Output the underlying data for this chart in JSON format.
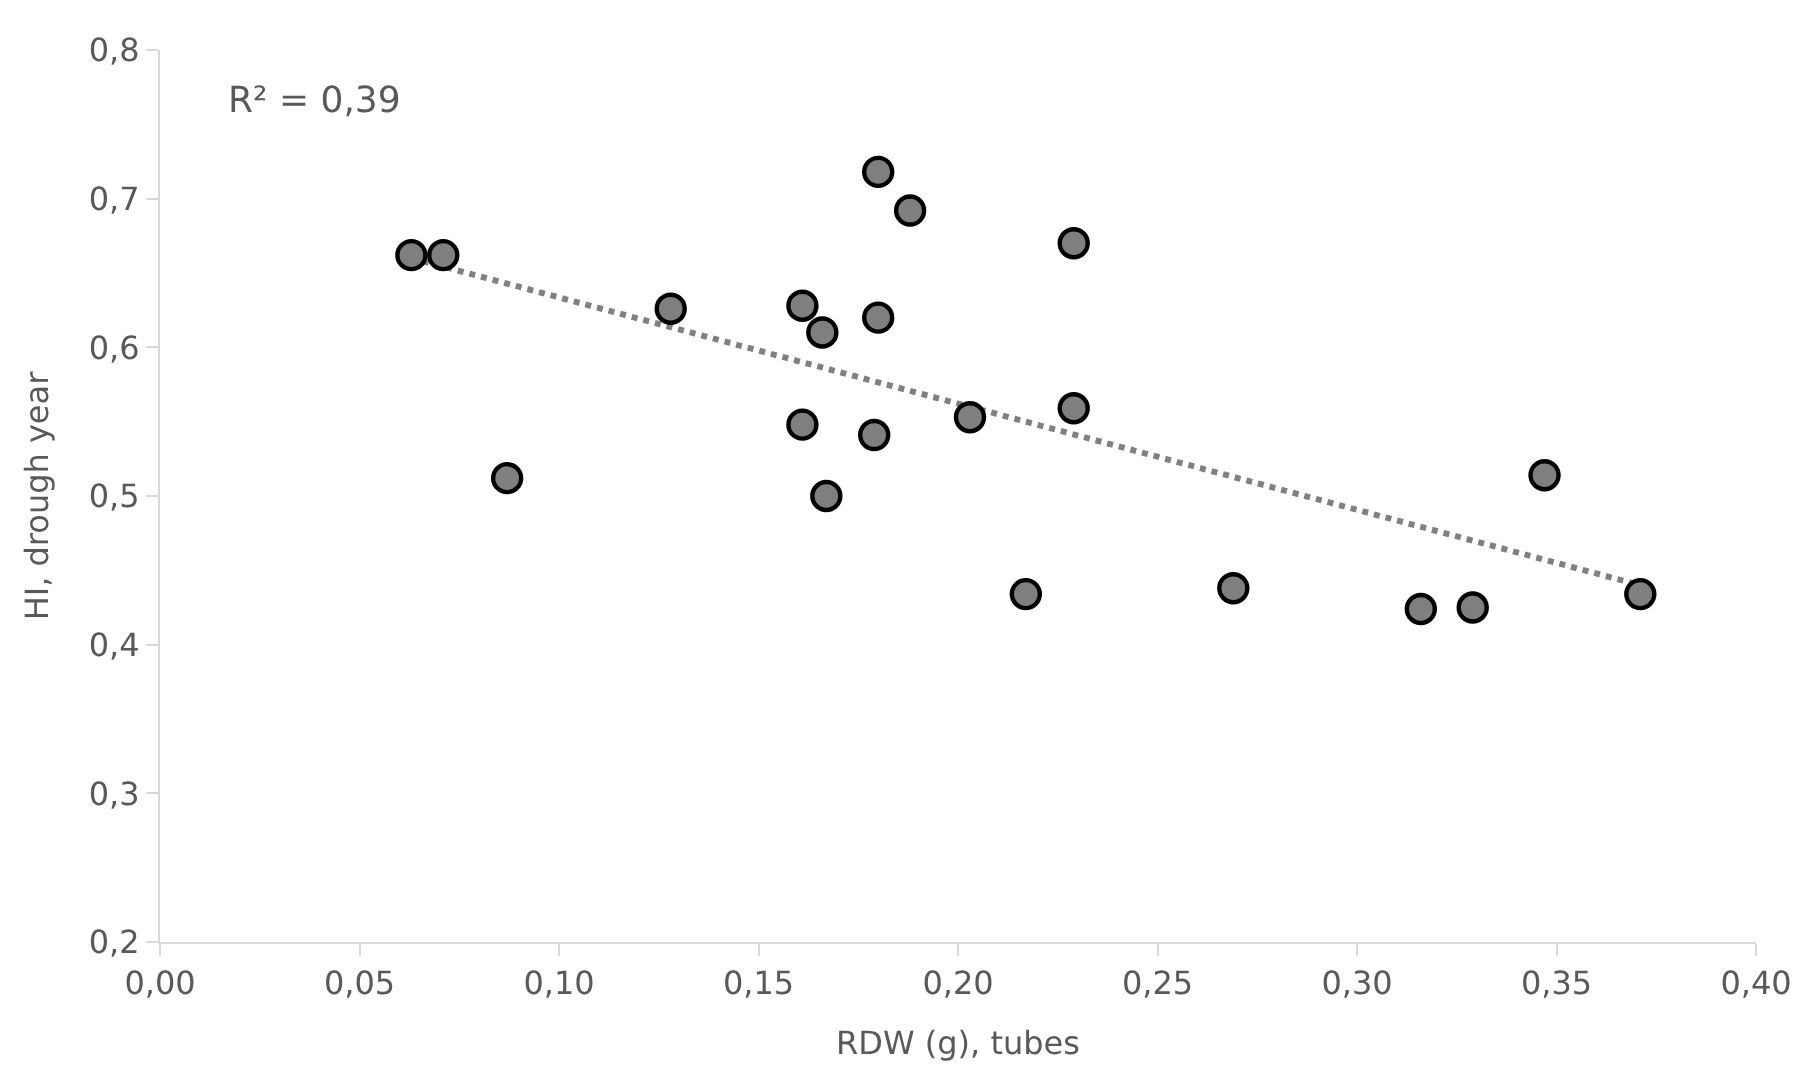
{
  "chart_data": {
    "type": "scatter",
    "xlabel": "RDW (g), tubes",
    "ylabel": "HI, drough year",
    "annotations": [
      "R² = 0,39"
    ],
    "xlim": [
      0,
      0.4
    ],
    "ylim": [
      0.2,
      0.8
    ],
    "xticks": [
      {
        "value": 0,
        "label": "0,00"
      },
      {
        "value": 0.05,
        "label": "0,05"
      },
      {
        "value": 0.1,
        "label": "0,10"
      },
      {
        "value": 0.15,
        "label": "0,15"
      },
      {
        "value": 0.2,
        "label": "0,20"
      },
      {
        "value": 0.25,
        "label": "0,25"
      },
      {
        "value": 0.3,
        "label": "0,30"
      },
      {
        "value": 0.35,
        "label": "0,35"
      },
      {
        "value": 0.4,
        "label": "0,40"
      }
    ],
    "yticks": [
      {
        "value": 0.2,
        "label": "0,2"
      },
      {
        "value": 0.3,
        "label": "0,3"
      },
      {
        "value": 0.4,
        "label": "0,4"
      },
      {
        "value": 0.5,
        "label": "0,5"
      },
      {
        "value": 0.6,
        "label": "0,6"
      },
      {
        "value": 0.7,
        "label": "0,7"
      },
      {
        "value": 0.8,
        "label": "0,8"
      }
    ],
    "series": [
      {
        "marker": "circle",
        "color": "#7f7f7f",
        "x": [
          0.063,
          0.071,
          0.087,
          0.128,
          0.161,
          0.166,
          0.161,
          0.167,
          0.18,
          0.188,
          0.18,
          0.179,
          0.203,
          0.229,
          0.229,
          0.217,
          0.269,
          0.316,
          0.329,
          0.347,
          0.371
        ],
        "values": [
          0.662,
          0.662,
          0.512,
          0.626,
          0.628,
          0.61,
          0.548,
          0.5,
          0.718,
          0.692,
          0.62,
          0.541,
          0.553,
          0.67,
          0.559,
          0.434,
          0.438,
          0.424,
          0.425,
          0.514,
          0.434
        ]
      },
      {
        "type": "line",
        "marker": "none",
        "color": "#808080",
        "line_style": "dotted",
        "x": [
          0.063,
          0.371
        ],
        "values": [
          0.66,
          0.44
        ]
      }
    ]
  }
}
